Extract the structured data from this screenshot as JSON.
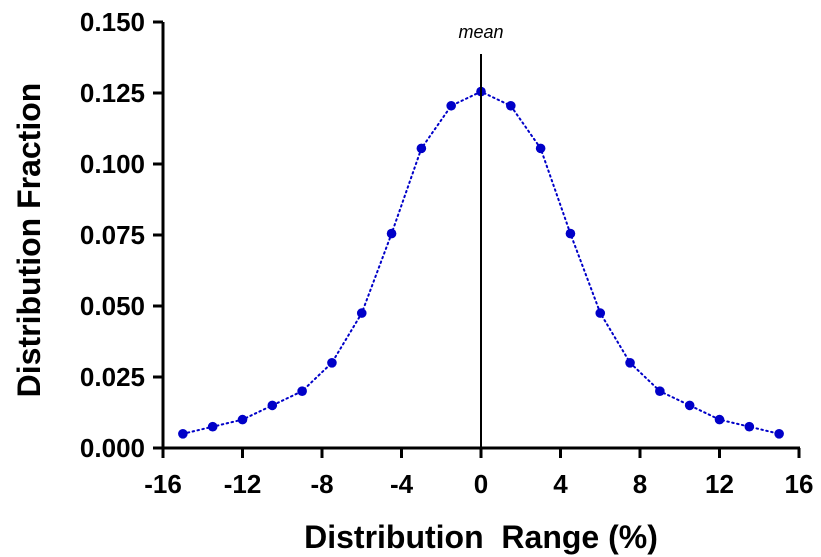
{
  "chart_data": {
    "type": "scatter",
    "title": "",
    "xlabel": "Distribution  Range (%)",
    "ylabel": "Distribution Fraction",
    "xlim": [
      -16,
      16
    ],
    "ylim": [
      0.0,
      0.15
    ],
    "xticks": [
      "-16",
      "-12",
      "-8",
      "-4",
      "0",
      "4",
      "8",
      "12",
      "16"
    ],
    "yticks": [
      "0.000",
      "0.025",
      "0.050",
      "0.075",
      "0.100",
      "0.125",
      "0.150"
    ],
    "grid": false,
    "annotation": {
      "label": "mean",
      "x": 0
    },
    "connect_points": "dotted",
    "series_color": "#0000c8",
    "series": [
      {
        "x": [
          -15,
          -13.5,
          -12,
          -10.5,
          -9,
          -7.5,
          -6,
          -4.5,
          -3,
          -1.5,
          0,
          1.5,
          3,
          4.5,
          6,
          7.5,
          9,
          10.5,
          12,
          13.5,
          15
        ],
        "y": [
          0.005,
          0.0075,
          0.01,
          0.015,
          0.02,
          0.03,
          0.0475,
          0.0755,
          0.1055,
          0.1205,
          0.1255,
          0.1205,
          0.1055,
          0.0755,
          0.0475,
          0.03,
          0.02,
          0.015,
          0.01,
          0.0075,
          0.005
        ]
      }
    ]
  }
}
